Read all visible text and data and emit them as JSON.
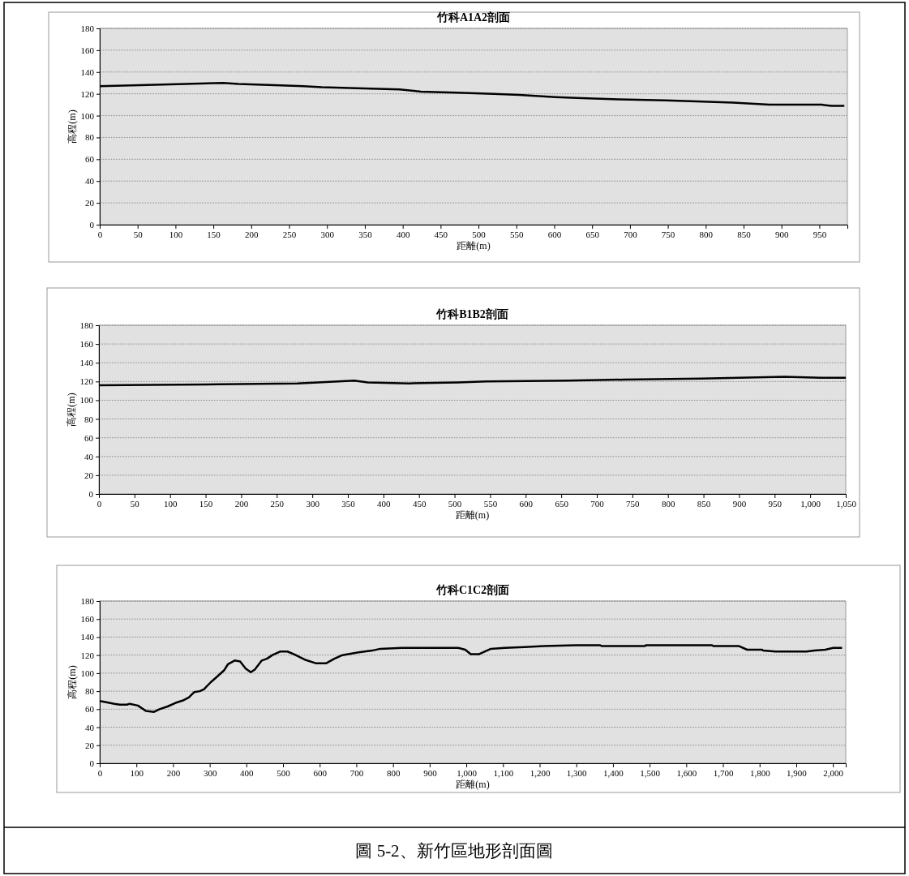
{
  "chart_data": [
    {
      "type": "line",
      "title": "竹科A1A2剖面",
      "xlabel": "距離(m)",
      "ylabel": "高程(m)",
      "xlim": [
        0,
        987
      ],
      "xticks": [
        0,
        50,
        100,
        150,
        200,
        250,
        300,
        350,
        400,
        450,
        500,
        550,
        600,
        650,
        700,
        750,
        800,
        850,
        900,
        950
      ],
      "ylim": [
        0,
        180
      ],
      "yticks": [
        0,
        20,
        40,
        60,
        80,
        100,
        120,
        140,
        160,
        180
      ],
      "grid": "y",
      "marker": "none",
      "line_style": "solid",
      "series": [
        {
          "color": "#000000",
          "x": [
            0,
            53,
            163,
            183,
            231,
            269,
            293,
            348,
            396,
            424,
            472,
            520,
            554,
            602,
            637,
            685,
            747,
            788,
            836,
            884,
            953,
            966,
            983
          ],
          "values": [
            127,
            128,
            130,
            129,
            128,
            127,
            126,
            125,
            124,
            122,
            121,
            120,
            119,
            117,
            116,
            115,
            114,
            113,
            112,
            110,
            110,
            109,
            109
          ]
        }
      ]
    },
    {
      "type": "line",
      "title": "竹科B1B2剖面",
      "xlabel": "距離(m)",
      "ylabel": "高程(m)",
      "xlim": [
        0,
        1050
      ],
      "xticks": [
        0,
        50,
        100,
        150,
        200,
        250,
        300,
        350,
        400,
        450,
        500,
        550,
        600,
        650,
        700,
        750,
        800,
        850,
        900,
        950,
        {
          "value": 1000,
          "label": "1,000"
        },
        {
          "value": 1050,
          "label": "1,050"
        }
      ],
      "ylim": [
        0,
        180
      ],
      "yticks": [
        0,
        20,
        40,
        60,
        80,
        100,
        120,
        140,
        160,
        180
      ],
      "grid": "y",
      "marker": "none",
      "line_style": "solid",
      "series": [
        {
          "color": "#000000",
          "x": [
            0,
            170,
            279,
            308,
            359,
            378,
            436,
            505,
            545,
            658,
            738,
            847,
            964,
            1015,
            1050
          ],
          "values": [
            116,
            117,
            118,
            119,
            121,
            119,
            118,
            119,
            120,
            121,
            122,
            123,
            125,
            124,
            124
          ]
        }
      ]
    },
    {
      "type": "line",
      "title": "竹科C1C2剖面",
      "xlabel": "距離(m)",
      "ylabel": "高程(m)",
      "xlim": [
        0,
        2035
      ],
      "xticks": [
        0,
        100,
        200,
        300,
        400,
        500,
        600,
        700,
        800,
        900,
        {
          "value": 1000,
          "label": "1,000"
        },
        {
          "value": 1100,
          "label": "1,100"
        },
        {
          "value": 1200,
          "label": "1,200"
        },
        {
          "value": 1300,
          "label": "1,300"
        },
        {
          "value": 1400,
          "label": "1,400"
        },
        {
          "value": 1500,
          "label": "1,500"
        },
        {
          "value": 1600,
          "label": "1,600"
        },
        {
          "value": 1700,
          "label": "1,700"
        },
        {
          "value": 1800,
          "label": "1,800"
        },
        {
          "value": 1900,
          "label": "1,900"
        },
        {
          "value": 2000,
          "label": "2,000"
        }
      ],
      "ylim": [
        0,
        180
      ],
      "yticks": [
        0,
        20,
        40,
        60,
        80,
        100,
        120,
        140,
        160,
        180
      ],
      "grid": "y",
      "marker": "none",
      "line_style": "solid",
      "annotations": [
        "圖 5-2、新竹區地形剖面圖"
      ],
      "series": [
        {
          "color": "#000000",
          "x": [
            0,
            15,
            40,
            55,
            74,
            82,
            104,
            126,
            148,
            163,
            185,
            207,
            229,
            243,
            258,
            273,
            284,
            303,
            317,
            339,
            350,
            368,
            383,
            398,
            412,
            423,
            442,
            456,
            471,
            493,
            512,
            530,
            559,
            589,
            618,
            640,
            662,
            706,
            743,
            765,
            824,
            978,
            997,
            1012,
            1034,
            1067,
            1104,
            1159,
            1211,
            1299,
            1365,
            1369,
            1487,
            1490,
            1670,
            1674,
            1744,
            1766,
            1807,
            1810,
            1843,
            1928,
            1950,
            1979,
            2001,
            2025
          ],
          "values": [
            69,
            68,
            66,
            65,
            65,
            66,
            64,
            58,
            57,
            60,
            63,
            67,
            70,
            73,
            79,
            80,
            82,
            90,
            95,
            103,
            110,
            114,
            113,
            105,
            101,
            104,
            114,
            116,
            120,
            124,
            124,
            121,
            115,
            111,
            111,
            116,
            120,
            123,
            125,
            127,
            128,
            128,
            126,
            121,
            121,
            127,
            128,
            129,
            130,
            131,
            131,
            130,
            130,
            131,
            131,
            130,
            130,
            126,
            126,
            125,
            124,
            124,
            125,
            126,
            128,
            128
          ]
        }
      ]
    }
  ]
}
